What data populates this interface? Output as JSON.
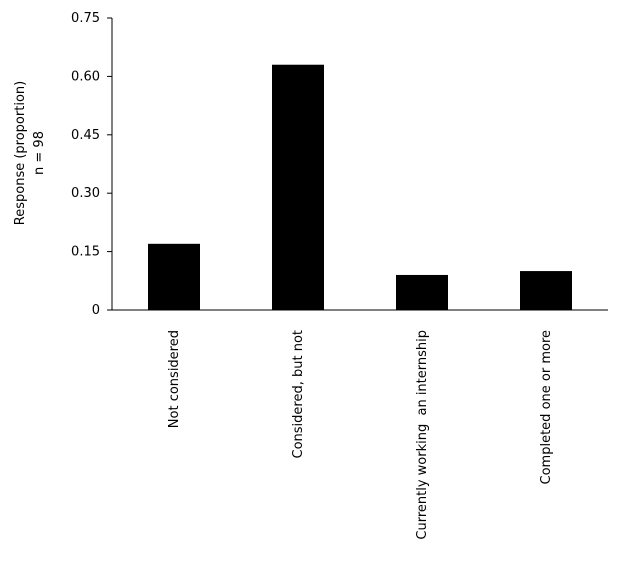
{
  "chart_data": {
    "type": "bar",
    "categories": [
      "Not considered",
      "Considered, but not",
      "Currently working  an internship",
      "Completed one or more"
    ],
    "values": [
      0.17,
      0.63,
      0.09,
      0.1
    ],
    "ylabel_lines": [
      "Response (proportion)",
      "n = 98"
    ],
    "yticks": [
      "0",
      "0.15",
      "0.30",
      "0.45",
      "0.60",
      "0.75"
    ],
    "ylim": [
      0,
      0.75
    ],
    "grid": false,
    "bar_color": "#000000"
  }
}
